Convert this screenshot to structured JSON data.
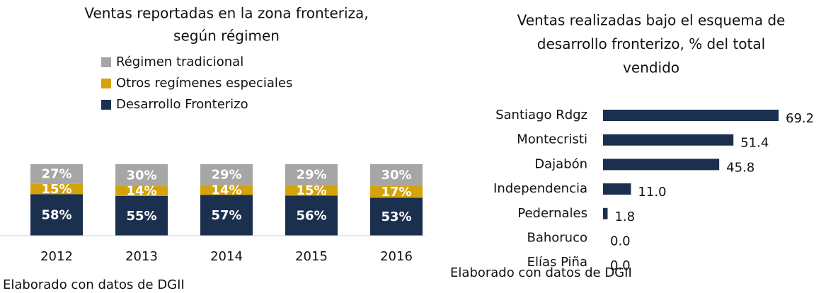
{
  "chart_data": [
    {
      "type": "stacked_bar",
      "title": [
        "Ventas reportadas en la zona fronteriza,",
        "según régimen"
      ],
      "categories": [
        "2012",
        "2013",
        "2014",
        "2015",
        "2016"
      ],
      "series": [
        {
          "name": "Desarrollo Fronterizo",
          "color": "#1b2f4e",
          "values": [
            58,
            55,
            57,
            56,
            53
          ],
          "value_labels": [
            "58%",
            "55%",
            "57%",
            "56%",
            "53%"
          ]
        },
        {
          "name": "Otros regímenes especiales",
          "color": "#d4a20a",
          "values": [
            15,
            14,
            14,
            15,
            17
          ],
          "value_labels": [
            "15%",
            "14%",
            "14%",
            "15%",
            "17%"
          ]
        },
        {
          "name": "Régimen tradicional",
          "color": "#a6a6a6",
          "values": [
            27,
            30,
            29,
            29,
            30
          ],
          "value_labels": [
            "27%",
            "30%",
            "29%",
            "29%",
            "30%"
          ]
        }
      ],
      "source": "Elaborado con datos de DGII"
    },
    {
      "type": "hbar",
      "title": [
        "Ventas realizadas bajo el esquema de",
        "desarrollo fronterizo, % del total",
        "vendido"
      ],
      "categories": [
        "Santiago Rdgz",
        "Montecristi",
        "Dajabón",
        "Independencia",
        "Pedernales",
        "Bahoruco",
        "Elías Piña"
      ],
      "values": [
        69.2,
        51.4,
        45.8,
        11.0,
        1.8,
        0.0,
        0.0
      ],
      "value_labels": [
        "69.2",
        "51.4",
        "45.8",
        "11.0",
        "1.8",
        "0.0",
        "0.0"
      ],
      "color": "#1b2f4e",
      "source": "Elaborado con datos de DGII"
    }
  ]
}
